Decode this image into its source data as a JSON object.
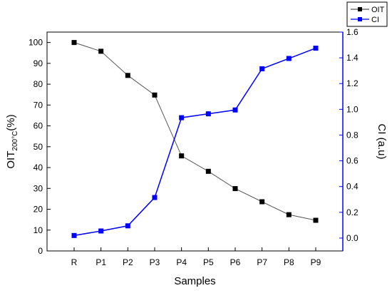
{
  "chart_data": {
    "type": "line",
    "categories": [
      "R",
      "P1",
      "P2",
      "P3",
      "P4",
      "P5",
      "P6",
      "P7",
      "P8",
      "P9"
    ],
    "xlabel": "Samples",
    "y_left": {
      "label_main": "OIT",
      "label_sub": "200°C",
      "label_suffix": "(%)",
      "lim": [
        0,
        105
      ],
      "ticks": [
        0,
        10,
        20,
        30,
        40,
        50,
        60,
        70,
        80,
        90,
        100
      ],
      "color": "#000000"
    },
    "y_right": {
      "label": "CI (a.u)",
      "lim": [
        -0.1,
        1.6
      ],
      "ticks": [
        "0.0",
        "0.2",
        "0.4",
        "0.6",
        "0.8",
        "1.0",
        "1.2",
        "1.4",
        "1.6"
      ],
      "color": "#0000ff"
    },
    "series": [
      {
        "name": "OIT",
        "axis": "left",
        "color": "#000000",
        "line_color": "#555555",
        "marker": "square",
        "values": [
          100,
          95.8,
          84.2,
          74.8,
          45.6,
          38.2,
          29.9,
          23.6,
          17.4,
          14.7
        ]
      },
      {
        "name": "CI",
        "axis": "right",
        "color": "#0000ff",
        "line_color": "#0000ff",
        "marker": "square",
        "values": [
          0.02,
          0.055,
          0.095,
          0.315,
          0.935,
          0.965,
          0.995,
          1.315,
          1.395,
          1.475
        ]
      }
    ],
    "legend": {
      "placement": "top-right"
    },
    "grid": false
  }
}
